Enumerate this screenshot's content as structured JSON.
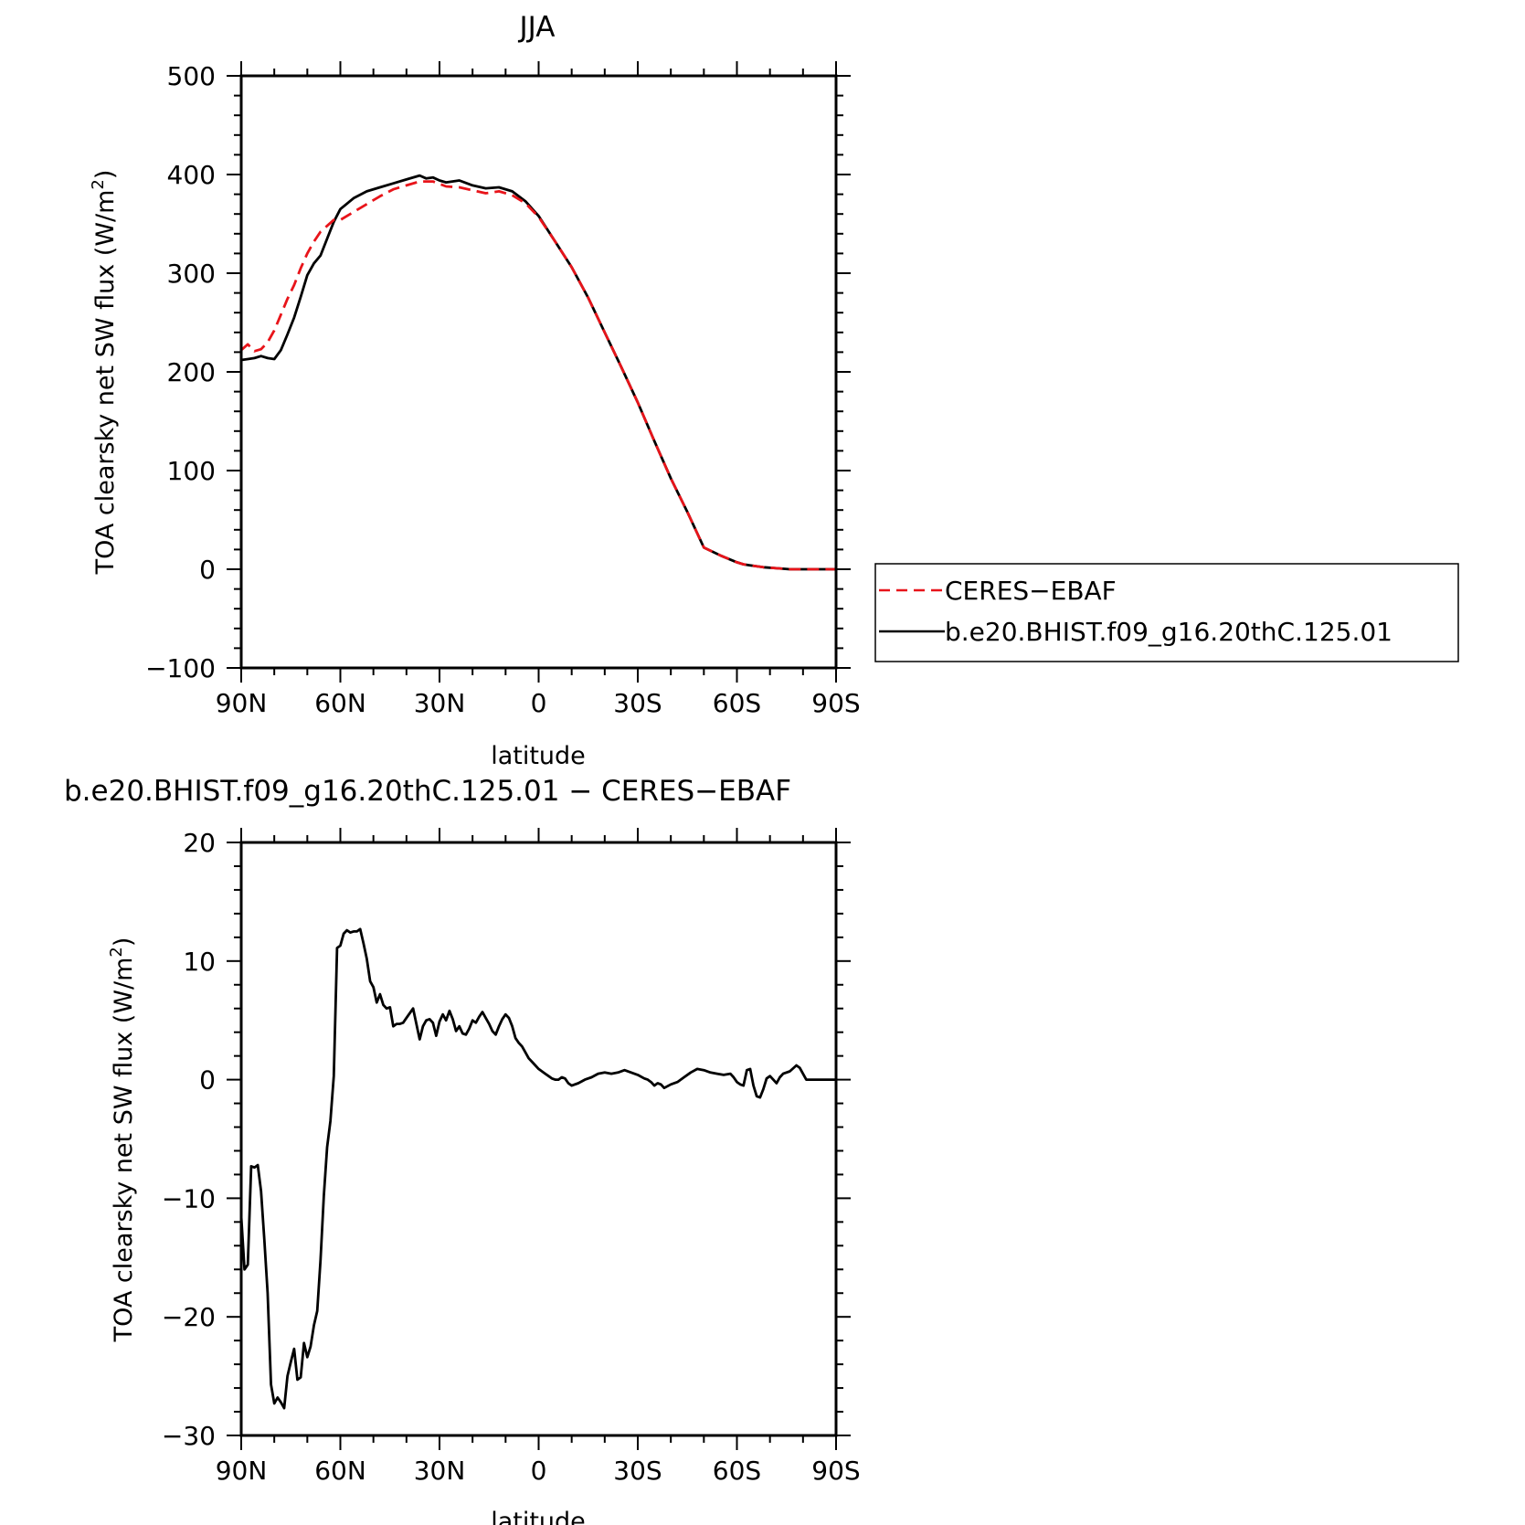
{
  "chart_data": [
    {
      "type": "line",
      "title": "JJA",
      "xlabel": "latitude",
      "ylabel": "TOA clearsky net SW flux (W/m²)",
      "ylabel_main": "TOA clearsky net SW flux (W/m",
      "ylabel_sup": "2",
      "ylabel_close": ")",
      "xlim": [
        -90,
        90
      ],
      "ylim": [
        -100,
        500
      ],
      "xticks": [
        -90,
        -60,
        -30,
        0,
        30,
        60,
        90
      ],
      "xtick_labels": [
        "90N",
        "60N",
        "30N",
        "0",
        "30S",
        "60S",
        "90S"
      ],
      "yticks": [
        -100,
        0,
        100,
        200,
        300,
        400,
        500
      ],
      "ytick_labels": [
        "−100",
        "0",
        "100",
        "200",
        "300",
        "400",
        "500"
      ],
      "legend": {
        "placement": "right",
        "entries": [
          "CERES−EBAF",
          "b.e20.BHIST.f09_g16.20thC.125.01"
        ]
      },
      "series": [
        {
          "name": "CERES−EBAF",
          "color": "#e8141a",
          "dash": "dashed",
          "x": [
            -90,
            -88,
            -86,
            -84,
            -82,
            -80,
            -78,
            -76,
            -74,
            -72,
            -70,
            -68,
            -66,
            -64,
            -62,
            -60,
            -56,
            -52,
            -48,
            -44,
            -40,
            -36,
            -32,
            -28,
            -24,
            -20,
            -16,
            -12,
            -8,
            -4,
            0,
            5,
            10,
            15,
            20,
            25,
            30,
            35,
            40,
            45,
            50,
            55,
            60,
            62,
            64,
            66,
            68,
            72,
            76,
            80,
            84,
            90
          ],
          "y": [
            222,
            228,
            221,
            223,
            230,
            242,
            258,
            274,
            288,
            305,
            320,
            332,
            342,
            348,
            354,
            354,
            362,
            370,
            378,
            385,
            389,
            393,
            393,
            388,
            387,
            384,
            381,
            383,
            379,
            371,
            357,
            332,
            306,
            275,
            240,
            205,
            169,
            130,
            92,
            58,
            22,
            14,
            7,
            5,
            4,
            3,
            2,
            1,
            0,
            0,
            0,
            0
          ]
        },
        {
          "name": "b.e20.BHIST.f09_g16.20thC.125.01",
          "color": "#000000",
          "dash": "solid",
          "x": [
            -90,
            -88,
            -86,
            -84,
            -82,
            -80,
            -78,
            -76,
            -74,
            -72,
            -70,
            -68,
            -66,
            -64,
            -62,
            -60,
            -56,
            -52,
            -48,
            -44,
            -40,
            -36,
            -34,
            -32,
            -30,
            -28,
            -24,
            -20,
            -16,
            -12,
            -8,
            -4,
            0,
            5,
            10,
            15,
            20,
            25,
            30,
            35,
            40,
            45,
            50,
            55,
            60,
            62,
            64,
            66,
            68,
            72,
            76,
            80,
            84,
            90
          ],
          "y": [
            212,
            213,
            214,
            216,
            214,
            213,
            222,
            238,
            255,
            276,
            298,
            310,
            318,
            335,
            352,
            365,
            376,
            383,
            387,
            391,
            395,
            399,
            396,
            397,
            394,
            392,
            394,
            389,
            386,
            387,
            383,
            373,
            358,
            332,
            306,
            275,
            240,
            205,
            169,
            130,
            92,
            58,
            22,
            14,
            7,
            5,
            4,
            3,
            2,
            1,
            0,
            0,
            0,
            0
          ]
        }
      ]
    },
    {
      "type": "line",
      "title": "b.e20.BHIST.f09_g16.20thC.125.01 − CERES−EBAF",
      "xlabel": "latitude",
      "ylabel": "TOA clearsky net SW flux (W/m²)",
      "ylabel_main": "TOA clearsky net SW flux (W/m",
      "ylabel_sup": "2",
      "ylabel_close": ")",
      "xlim": [
        -90,
        90
      ],
      "ylim": [
        -30,
        20
      ],
      "xticks": [
        -90,
        -60,
        -30,
        0,
        30,
        60,
        90
      ],
      "xtick_labels": [
        "90N",
        "60N",
        "30N",
        "0",
        "30S",
        "60S",
        "90S"
      ],
      "yticks": [
        -30,
        -20,
        -10,
        0,
        10,
        20
      ],
      "ytick_labels": [
        "−30",
        "−20",
        "−10",
        "0",
        "10",
        "20"
      ],
      "series": [
        {
          "color": "#000000",
          "dash": "solid",
          "x": [
            -90,
            -89,
            -88,
            -87,
            -86,
            -85,
            -84,
            -83,
            -82,
            -81,
            -80,
            -79,
            -78,
            -77,
            -76,
            -75,
            -74,
            -73,
            -72,
            -71,
            -70,
            -69,
            -68,
            -67,
            -66,
            -65,
            -64,
            -63,
            -62,
            -61,
            -60,
            -59,
            -58,
            -57,
            -56,
            -55,
            -54,
            -53,
            -52,
            -51,
            -50,
            -49,
            -48,
            -47,
            -46,
            -45,
            -44,
            -43,
            -42,
            -41,
            -40,
            -38,
            -36,
            -35,
            -34,
            -33,
            -32,
            -31,
            -30,
            -29,
            -28,
            -27,
            -26,
            -25,
            -24,
            -23,
            -22,
            -21,
            -20,
            -19,
            -18,
            -17,
            -16,
            -15,
            -14,
            -13,
            -12,
            -11,
            -10,
            -9,
            -8,
            -7,
            -6,
            -5,
            -4,
            -3,
            -2,
            -1,
            0,
            1,
            2,
            3,
            4,
            5,
            6,
            7,
            8,
            9,
            10,
            12,
            14,
            16,
            18,
            20,
            22,
            24,
            26,
            28,
            30,
            32,
            33,
            34,
            35,
            36,
            37,
            38,
            40,
            42,
            44,
            46,
            48,
            50,
            52,
            54,
            56,
            58,
            59,
            60,
            61,
            62,
            63,
            64,
            65,
            66,
            67,
            68,
            69,
            70,
            71,
            72,
            73,
            74,
            76,
            78,
            79,
            80,
            81,
            82,
            84,
            86,
            88,
            90
          ],
          "y": [
            -11.5,
            -16,
            -15.6,
            -7.3,
            -7.4,
            -7.2,
            -9.4,
            -13.5,
            -18,
            -25.7,
            -27.3,
            -26.8,
            -27.2,
            -27.7,
            -25,
            -23.8,
            -22.7,
            -25.3,
            -25.1,
            -22.2,
            -23.4,
            -22.5,
            -20.7,
            -19.5,
            -15.2,
            -9.8,
            -5.7,
            -3.5,
            0.3,
            11.1,
            11.3,
            12.3,
            12.6,
            12.4,
            12.5,
            12.5,
            12.7,
            11.5,
            10.2,
            8.3,
            7.8,
            6.5,
            7.2,
            6.3,
            6,
            6.1,
            4.5,
            4.7,
            4.7,
            4.8,
            5.2,
            6,
            3.4,
            4.5,
            5,
            5.1,
            4.8,
            3.7,
            4.9,
            5.5,
            5,
            5.8,
            5.1,
            4.1,
            4.5,
            3.9,
            3.8,
            4.3,
            5,
            4.8,
            5.3,
            5.7,
            5.2,
            4.7,
            4.1,
            3.8,
            4.5,
            5.1,
            5.5,
            5.2,
            4.5,
            3.5,
            3.1,
            2.8,
            2.3,
            1.8,
            1.5,
            1.2,
            0.9,
            0.7,
            0.5,
            0.3,
            0.1,
            0,
            0,
            0.2,
            0.1,
            -0.3,
            -0.5,
            -0.3,
            0,
            0.2,
            0.5,
            0.6,
            0.5,
            0.6,
            0.8,
            0.6,
            0.4,
            0.1,
            0,
            -0.2,
            -0.5,
            -0.3,
            -0.4,
            -0.7,
            -0.4,
            -0.2,
            0.2,
            0.6,
            0.9,
            0.8,
            0.6,
            0.5,
            0.4,
            0.5,
            0.2,
            -0.2,
            -0.4,
            -0.5,
            0.8,
            0.9,
            -0.5,
            -1.4,
            -1.5,
            -0.8,
            0.1,
            0.3,
            0,
            -0.3,
            0.2,
            0.5,
            0.7,
            1.2,
            1,
            0.5,
            0,
            0,
            0,
            0,
            0,
            0
          ]
        }
      ]
    }
  ]
}
